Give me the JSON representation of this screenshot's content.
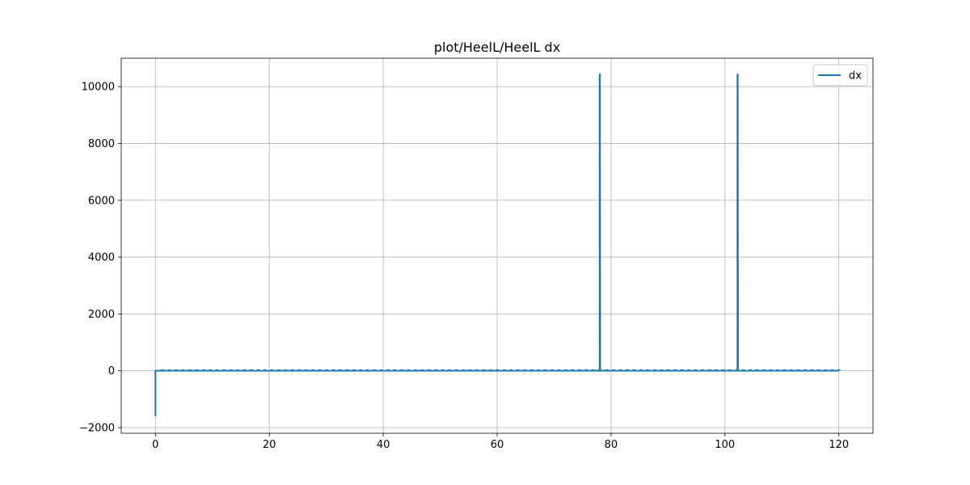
{
  "chart_data": {
    "type": "line",
    "title": "plot/HeelL/HeelL dx",
    "xlabel": "",
    "ylabel": "",
    "xlim": [
      -6,
      126
    ],
    "ylim": [
      -2200,
      11000
    ],
    "xticks": [
      0,
      20,
      40,
      60,
      80,
      100,
      120
    ],
    "yticks": [
      -2000,
      0,
      2000,
      4000,
      6000,
      8000,
      10000
    ],
    "xtick_labels": [
      "0",
      "20",
      "40",
      "60",
      "80",
      "100",
      "120"
    ],
    "ytick_labels": [
      "−2000",
      "0",
      "2000",
      "4000",
      "6000",
      "8000",
      "10000"
    ],
    "grid": true,
    "legend_position": "top-right",
    "series": [
      {
        "name": "dx",
        "color": "#1f77b4",
        "x": [
          0,
          0,
          0.05,
          78.0,
          78.0,
          78.05,
          78.1,
          102.2,
          102.2,
          102.25,
          102.3,
          120
        ],
        "y": [
          -1600,
          0,
          0,
          0,
          10430,
          10430,
          0,
          0,
          10430,
          10430,
          0,
          0
        ]
      }
    ]
  }
}
